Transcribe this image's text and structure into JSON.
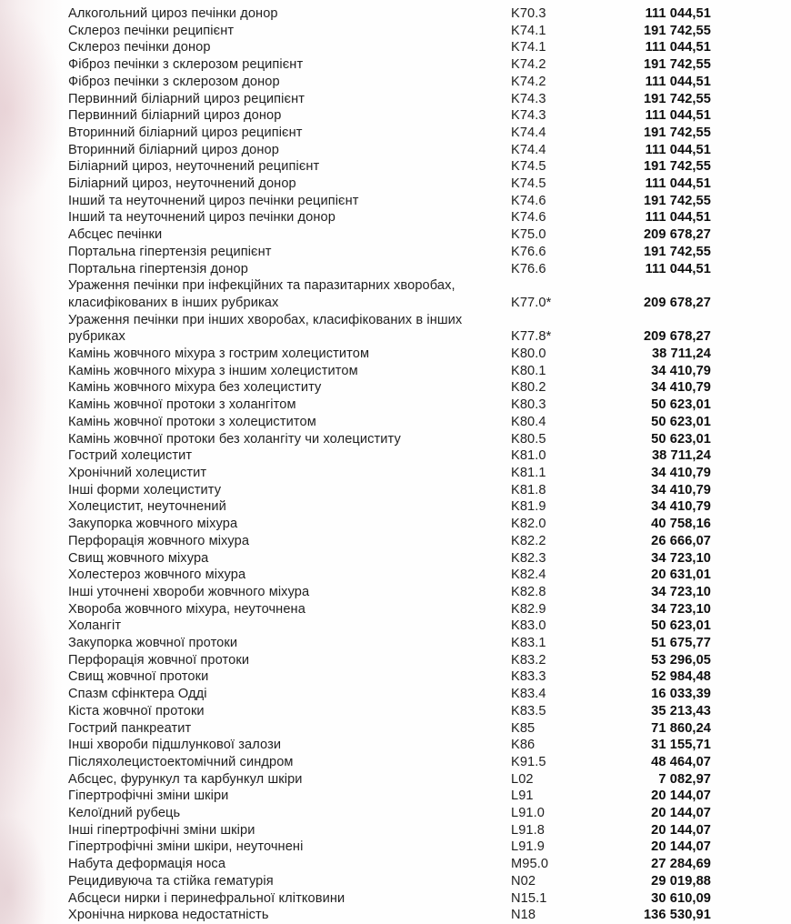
{
  "document": {
    "description": "Scanned tariff table page: diagnosis, ICD-10 code, amount",
    "text_color": "#1f1f1f",
    "value_color": "#0e0e0e",
    "scan_edge_tint": "#efe3e5",
    "rows": [
      {
        "name": "Алкогольний цироз печінки донор",
        "code": "K70.3",
        "value": "111 044,51"
      },
      {
        "name": "Склероз печінки реципієнт",
        "code": "K74.1",
        "value": "191 742,55"
      },
      {
        "name": "Склероз печінки донор",
        "code": "K74.1",
        "value": "111 044,51"
      },
      {
        "name": "Фіброз печінки з склерозом реципієнт",
        "code": "K74.2",
        "value": "191 742,55"
      },
      {
        "name": "Фіброз печінки з склерозом донор",
        "code": "K74.2",
        "value": "111 044,51"
      },
      {
        "name": "Первинний біліарний цироз реципієнт",
        "code": "K74.3",
        "value": "191 742,55"
      },
      {
        "name": "Первинний біліарний цироз донор",
        "code": "K74.3",
        "value": "111 044,51"
      },
      {
        "name": "Вторинний біліарний цироз реципієнт",
        "code": "K74.4",
        "value": "191 742,55"
      },
      {
        "name": "Вторинний біліарний цироз донор",
        "code": "K74.4",
        "value": "111 044,51"
      },
      {
        "name": "Біліарний цироз, неуточнений реципієнт",
        "code": "K74.5",
        "value": "191 742,55"
      },
      {
        "name": "Біліарний цироз, неуточнений донор",
        "code": "K74.5",
        "value": "111 044,51"
      },
      {
        "name": "Інший та неуточнений цироз печінки реципієнт",
        "code": "K74.6",
        "value": "191 742,55"
      },
      {
        "name": "Інший та неуточнений цироз печінки донор",
        "code": "K74.6",
        "value": "111 044,51"
      },
      {
        "name": "Абсцес печінки",
        "code": "K75.0",
        "value": "209 678,27"
      },
      {
        "name": "Портальна гіпертензія реципієнт",
        "code": "K76.6",
        "value": "191 742,55"
      },
      {
        "name": "Портальна гіпертензія донор",
        "code": "K76.6",
        "value": "111 044,51"
      },
      {
        "name": "Ураження печінки при інфекційних та паразитарних хворобах,\nкласифікованих в інших рубриках",
        "code": "K77.0*",
        "value": "209 678,27"
      },
      {
        "name": "Ураження печінки при інших хворобах, класифікованих в інших\nрубриках",
        "code": "K77.8*",
        "value": "209 678,27"
      },
      {
        "name": "Камінь жовчного міхура з гострим холециститом",
        "code": "K80.0",
        "value": "38 711,24"
      },
      {
        "name": "Камінь жовчного міхура з іншим холециститом",
        "code": "K80.1",
        "value": "34 410,79"
      },
      {
        "name": "Камінь жовчного міхура без холециститу",
        "code": "K80.2",
        "value": "34 410,79"
      },
      {
        "name": "Камінь жовчної протоки з холангітом",
        "code": "K80.3",
        "value": "50 623,01"
      },
      {
        "name": "Камінь жовчної протоки з холециститом",
        "code": "K80.4",
        "value": "50 623,01"
      },
      {
        "name": "Камінь жовчної протоки без холангіту чи холециститу",
        "code": "K80.5",
        "value": "50 623,01"
      },
      {
        "name": "Гострий холецистит",
        "code": "K81.0",
        "value": "38 711,24"
      },
      {
        "name": "Хронічний холецистит",
        "code": "K81.1",
        "value": "34 410,79"
      },
      {
        "name": "Інші форми холециститу",
        "code": "K81.8",
        "value": "34 410,79"
      },
      {
        "name": "Холецистит, неуточнений",
        "code": "K81.9",
        "value": "34 410,79"
      },
      {
        "name": "Закупорка жовчного міхура",
        "code": "K82.0",
        "value": "40 758,16"
      },
      {
        "name": "Перфорація жовчного міхура",
        "code": "K82.2",
        "value": "26 666,07"
      },
      {
        "name": "Свищ жовчного міхура",
        "code": "K82.3",
        "value": "34 723,10"
      },
      {
        "name": "Холестероз жовчного міхура",
        "code": "K82.4",
        "value": "20 631,01"
      },
      {
        "name": "Інші уточнені хвороби жовчного міхура",
        "code": "K82.8",
        "value": "34 723,10"
      },
      {
        "name": "Хвороба жовчного міхура, неуточнена",
        "code": "K82.9",
        "value": "34 723,10"
      },
      {
        "name": "Холангіт",
        "code": "K83.0",
        "value": "50 623,01"
      },
      {
        "name": "Закупорка жовчної протоки",
        "code": "K83.1",
        "value": "51 675,77"
      },
      {
        "name": "Перфорація жовчної протоки",
        "code": "K83.2",
        "value": "53 296,05"
      },
      {
        "name": "Свищ жовчної протоки",
        "code": "K83.3",
        "value": "52 984,48"
      },
      {
        "name": "Спазм сфінктера Одді",
        "code": "K83.4",
        "value": "16 033,39"
      },
      {
        "name": "Кіста жовчної протоки",
        "code": "K83.5",
        "value": "35 213,43"
      },
      {
        "name": "Гострий панкреатит",
        "code": "K85",
        "value": "71 860,24"
      },
      {
        "name": "Інші хвороби підшлункової залози",
        "code": "K86",
        "value": "31 155,71"
      },
      {
        "name": "Післяхолецистоектомічний синдром",
        "code": "K91.5",
        "value": "48 464,07"
      },
      {
        "name": "Абсцес, фурункул та карбункул шкіри",
        "code": "L02",
        "value": "7 082,97"
      },
      {
        "name": "Гіпертрофічні зміни шкіри",
        "code": "L91",
        "value": "20 144,07"
      },
      {
        "name": "Келоїдний рубець",
        "code": "L91.0",
        "value": "20 144,07"
      },
      {
        "name": "Інші гіпертрофічні зміни шкіри",
        "code": "L91.8",
        "value": "20 144,07"
      },
      {
        "name": "Гіпертрофічні зміни шкіри, неуточнені",
        "code": "L91.9",
        "value": "20 144,07"
      },
      {
        "name": "Набута деформація носа",
        "code": "M95.0",
        "value": "27 284,69"
      },
      {
        "name": "Рецидивуюча та стійка гематурія",
        "code": "N02",
        "value": "29 019,88"
      },
      {
        "name": "Абсцеси нирки і перинефральної клітковини",
        "code": "N15.1",
        "value": "30 610,09"
      },
      {
        "name": "Хронічна ниркова недостатність",
        "code": "N18",
        "value": "136 530,91"
      }
    ]
  }
}
